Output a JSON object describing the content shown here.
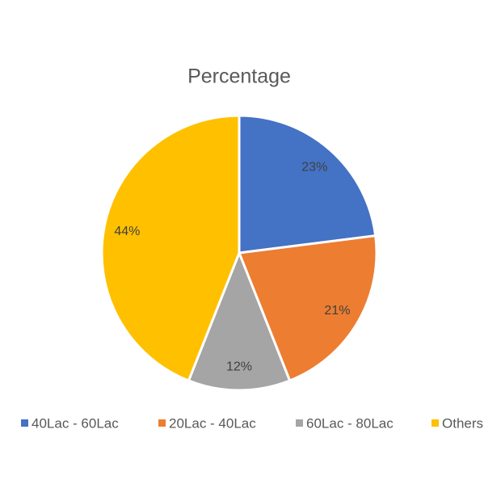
{
  "chart_data": {
    "type": "pie",
    "title": "Percentage",
    "categories": [
      "40Lac - 60Lac",
      "20Lac - 40Lac",
      "60Lac - 80Lac",
      "Others"
    ],
    "values": [
      23,
      21,
      12,
      44
    ],
    "value_labels": [
      "23%",
      "21%",
      "12%",
      "44%"
    ],
    "colors": [
      "#4472c4",
      "#ed7d31",
      "#a5a5a5",
      "#ffc000"
    ],
    "legend": "bottom"
  }
}
